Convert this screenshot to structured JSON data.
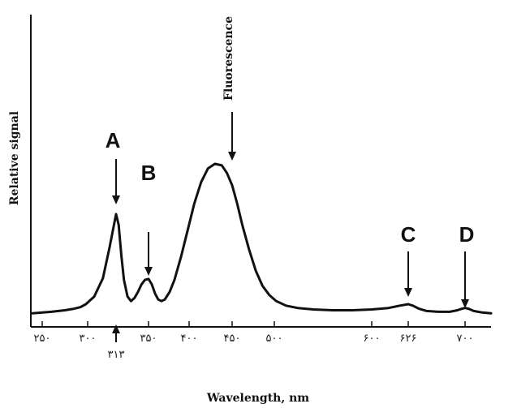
{
  "chart_data": {
    "type": "line",
    "ylabel": "Relative signal",
    "xlabel": "Wavelength, nm",
    "x_ticks": [
      {
        "value": 250,
        "label": "۲۵۰"
      },
      {
        "value": 300,
        "label": "۳۰۰"
      },
      {
        "value": 350,
        "label": "۳۵۰"
      },
      {
        "value": 400,
        "label": "۴۰۰"
      },
      {
        "value": 450,
        "label": "۴۵۰"
      },
      {
        "value": 500,
        "label": "۵۰۰"
      },
      {
        "value": 600,
        "label": "۶۰۰"
      },
      {
        "value": 626,
        "label": "۶۲۶"
      },
      {
        "value": 700,
        "label": "۷۰۰"
      }
    ],
    "below_axis_label": {
      "value": 313,
      "label": "۳۱۳"
    },
    "series": [
      {
        "x": [
          245,
          260,
          275,
          285,
          292,
          298,
          303,
          307,
          310,
          313,
          316,
          319,
          322,
          326,
          330,
          334,
          338,
          342,
          346,
          350,
          354,
          358,
          362,
          366,
          370,
          376,
          382,
          390,
          398,
          406,
          414,
          422,
          430,
          438,
          444,
          450,
          456,
          462,
          470,
          478,
          486,
          494,
          502,
          512,
          524,
          540,
          560,
          580,
          600,
          612,
          620,
          626,
          632,
          640,
          650,
          665,
          680,
          690,
          696,
          700,
          704,
          710,
          720,
          730
        ],
        "y": [
          0.02,
          0.03,
          0.04,
          0.05,
          0.06,
          0.08,
          0.13,
          0.25,
          0.45,
          0.67,
          0.6,
          0.4,
          0.24,
          0.13,
          0.1,
          0.12,
          0.16,
          0.21,
          0.24,
          0.245,
          0.21,
          0.15,
          0.11,
          0.1,
          0.11,
          0.16,
          0.24,
          0.39,
          0.56,
          0.74,
          0.88,
          0.97,
          1.0,
          0.99,
          0.94,
          0.86,
          0.74,
          0.6,
          0.44,
          0.3,
          0.2,
          0.14,
          0.1,
          0.07,
          0.055,
          0.045,
          0.04,
          0.04,
          0.045,
          0.055,
          0.07,
          0.08,
          0.07,
          0.05,
          0.035,
          0.03,
          0.03,
          0.04,
          0.05,
          0.055,
          0.05,
          0.035,
          0.025,
          0.02
        ]
      }
    ],
    "annotations": [
      {
        "text": "A",
        "x": 313
      },
      {
        "text": "B",
        "x": 350
      },
      {
        "text": "Fluorescence",
        "x": 450
      },
      {
        "text": "C",
        "x": 626
      },
      {
        "text": "D",
        "x": 700
      }
    ],
    "grid": false,
    "legend": "none"
  }
}
